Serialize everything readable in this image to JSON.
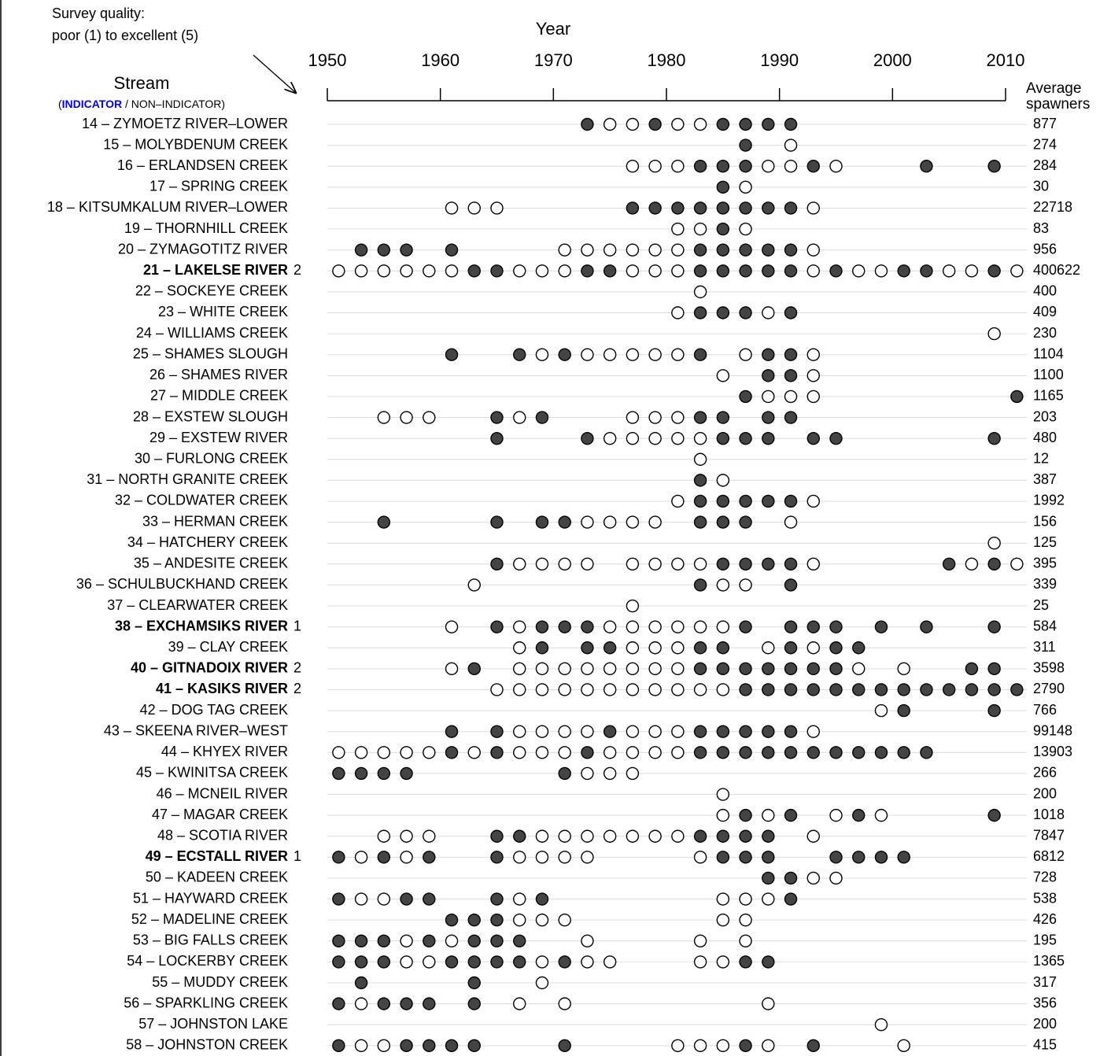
{
  "chart_data": {
    "type": "dot-timeline",
    "survey_note": [
      "Survey quality:",
      "poor (1) to excellent (5)"
    ],
    "x_label": "Year",
    "stream_header": "Stream",
    "stream_legend": [
      "(",
      "INDICATOR",
      " / NON–INDICATOR)"
    ],
    "spawners_header": [
      "Average",
      "spawners"
    ],
    "xlim": [
      1950,
      2010
    ],
    "xticks": [
      1950,
      1960,
      1970,
      1980,
      1990,
      2000,
      2010
    ],
    "filled_color": "#444444",
    "indicator_color": "#0000ee",
    "label_color": "#444444",
    "streams": [
      {
        "label": "14 – ZYMOETZ RIVER–LOWER",
        "spawners": 877,
        "filled": [
          1973,
          1979,
          1985,
          1987,
          1989,
          1991
        ],
        "open": [
          1975,
          1977,
          1981,
          1983
        ]
      },
      {
        "label": "15 – MOLYBDENUM CREEK",
        "spawners": 274,
        "filled": [
          1987
        ],
        "open": [
          1991
        ]
      },
      {
        "label": "16 – ERLANDSEN CREEK",
        "spawners": 284,
        "filled": [
          1983,
          1985,
          1987,
          1993,
          2003,
          2009
        ],
        "open": [
          1977,
          1979,
          1981,
          1989,
          1991,
          1995
        ]
      },
      {
        "label": "17 – SPRING CREEK",
        "spawners": 30,
        "filled": [
          1985
        ],
        "open": [
          1987
        ]
      },
      {
        "label": "18 – KITSUMKALUM RIVER–LOWER",
        "spawners": 22718,
        "filled": [
          1977,
          1979,
          1981,
          1983,
          1985,
          1987,
          1989,
          1991
        ],
        "open": [
          1961,
          1963,
          1965,
          1993
        ]
      },
      {
        "label": "19 – THORNHILL CREEK",
        "spawners": 83,
        "filled": [
          1985
        ],
        "open": [
          1981,
          1983,
          1987
        ]
      },
      {
        "label": "20 – ZYMAGOTITZ RIVER",
        "spawners": 956,
        "filled": [
          1953,
          1955,
          1957,
          1961,
          1983,
          1985,
          1987,
          1989,
          1991
        ],
        "open": [
          1971,
          1973,
          1975,
          1977,
          1979,
          1981,
          1993
        ]
      },
      {
        "label": "21 – LAKELSE RIVER",
        "indicator": true,
        "quality": 2,
        "spawners": 400622,
        "filled": [
          1963,
          1965,
          1973,
          1975,
          1983,
          1985,
          1987,
          1989,
          1991,
          1995,
          2001,
          2003,
          2009
        ],
        "open": [
          1951,
          1953,
          1955,
          1957,
          1959,
          1961,
          1967,
          1969,
          1971,
          1977,
          1979,
          1981,
          1993,
          1997,
          1999,
          2005,
          2007,
          2011
        ]
      },
      {
        "label": "22 – SOCKEYE CREEK",
        "spawners": 400,
        "filled": [],
        "open": [
          1983
        ]
      },
      {
        "label": "23 – WHITE CREEK",
        "spawners": 409,
        "filled": [
          1983,
          1985,
          1987,
          1991
        ],
        "open": [
          1981,
          1989
        ]
      },
      {
        "label": "24 – WILLIAMS CREEK",
        "spawners": 230,
        "filled": [],
        "open": [
          2009
        ]
      },
      {
        "label": "25 – SHAMES SLOUGH",
        "spawners": 1104,
        "filled": [
          1961,
          1967,
          1971,
          1983,
          1989,
          1991
        ],
        "open": [
          1969,
          1973,
          1975,
          1977,
          1979,
          1981,
          1987,
          1993
        ]
      },
      {
        "label": "26 – SHAMES RIVER",
        "spawners": 1100,
        "filled": [
          1989,
          1991
        ],
        "open": [
          1985,
          1993
        ]
      },
      {
        "label": "27 – MIDDLE CREEK",
        "spawners": 1165,
        "filled": [
          1987,
          2011
        ],
        "open": [
          1989,
          1991,
          1993
        ]
      },
      {
        "label": "28 – EXSTEW SLOUGH",
        "spawners": 203,
        "filled": [
          1965,
          1969,
          1983,
          1985,
          1989,
          1991
        ],
        "open": [
          1955,
          1957,
          1959,
          1967,
          1977,
          1979,
          1981
        ]
      },
      {
        "label": "29 – EXSTEW RIVER",
        "spawners": 480,
        "filled": [
          1965,
          1973,
          1985,
          1987,
          1989,
          1993,
          1995,
          2009
        ],
        "open": [
          1975,
          1977,
          1979,
          1981,
          1983
        ]
      },
      {
        "label": "30 – FURLONG CREEK",
        "spawners": 12,
        "filled": [],
        "open": [
          1983
        ]
      },
      {
        "label": "31 – NORTH GRANITE CREEK",
        "spawners": 387,
        "filled": [
          1983
        ],
        "open": [
          1985
        ]
      },
      {
        "label": "32 – COLDWATER CREEK",
        "spawners": 1992,
        "filled": [
          1983,
          1985,
          1987,
          1989,
          1991
        ],
        "open": [
          1981,
          1993
        ]
      },
      {
        "label": "33 – HERMAN CREEK",
        "spawners": 156,
        "filled": [
          1955,
          1965,
          1969,
          1971,
          1983,
          1985,
          1987
        ],
        "open": [
          1973,
          1975,
          1977,
          1979,
          1991
        ]
      },
      {
        "label": "34 – HATCHERY CREEK",
        "spawners": 125,
        "filled": [],
        "open": [
          2009
        ]
      },
      {
        "label": "35 – ANDESITE CREEK",
        "spawners": 395,
        "filled": [
          1965,
          1985,
          1987,
          1989,
          1991,
          2005,
          2009
        ],
        "open": [
          1967,
          1969,
          1971,
          1973,
          1977,
          1979,
          1981,
          1983,
          1993,
          2007,
          2011
        ]
      },
      {
        "label": "36 – SCHULBUCKHAND CREEK",
        "spawners": 339,
        "filled": [
          1983,
          1991
        ],
        "open": [
          1963,
          1985,
          1987
        ]
      },
      {
        "label": "37 – CLEARWATER CREEK",
        "spawners": 25,
        "filled": [],
        "open": [
          1977
        ]
      },
      {
        "label": "38 – EXCHAMSIKS RIVER",
        "indicator": true,
        "quality": 1,
        "spawners": 584,
        "filled": [
          1965,
          1969,
          1971,
          1973,
          1987,
          1991,
          1993,
          1995,
          1999,
          2003,
          2009
        ],
        "open": [
          1961,
          1967,
          1975,
          1977,
          1979,
          1981,
          1983,
          1985
        ]
      },
      {
        "label": "39 – CLAY CREEK",
        "spawners": 311,
        "filled": [
          1969,
          1973,
          1975,
          1983,
          1985,
          1991,
          1995,
          1997
        ],
        "open": [
          1967,
          1977,
          1979,
          1981,
          1989,
          1993
        ]
      },
      {
        "label": "40 – GITNADOIX RIVER",
        "indicator": true,
        "quality": 2,
        "spawners": 3598,
        "filled": [
          1963,
          1983,
          1985,
          1987,
          1989,
          1991,
          1993,
          1995,
          2007,
          2009
        ],
        "open": [
          1961,
          1967,
          1969,
          1971,
          1973,
          1975,
          1977,
          1979,
          1981,
          1997,
          2001
        ]
      },
      {
        "label": "41 – KASIKS RIVER",
        "indicator": true,
        "quality": 2,
        "spawners": 2790,
        "filled": [
          1987,
          1989,
          1991,
          1993,
          1995,
          1997,
          1999,
          2001,
          2003,
          2005,
          2007,
          2009,
          2011
        ],
        "open": [
          1965,
          1967,
          1969,
          1971,
          1973,
          1975,
          1977,
          1979,
          1981,
          1983,
          1985
        ]
      },
      {
        "label": "42 – DOG TAG CREEK",
        "spawners": 766,
        "filled": [
          2001,
          2009
        ],
        "open": [
          1999
        ]
      },
      {
        "label": "43 – SKEENA RIVER–WEST",
        "spawners": 99148,
        "filled": [
          1961,
          1965,
          1975,
          1983,
          1985,
          1987,
          1989,
          1991
        ],
        "open": [
          1967,
          1969,
          1971,
          1973,
          1977,
          1979,
          1981,
          1993
        ]
      },
      {
        "label": "44 – KHYEX RIVER",
        "spawners": 13903,
        "filled": [
          1961,
          1965,
          1973,
          1983,
          1985,
          1987,
          1989,
          1991,
          1993,
          1995,
          1997,
          1999,
          2001,
          2003
        ],
        "open": [
          1951,
          1953,
          1955,
          1957,
          1959,
          1963,
          1967,
          1969,
          1971,
          1975,
          1977,
          1979,
          1981
        ]
      },
      {
        "label": "45 – KWINITSA CREEK",
        "spawners": 266,
        "filled": [
          1951,
          1953,
          1955,
          1957,
          1971
        ],
        "open": [
          1973,
          1975,
          1977
        ]
      },
      {
        "label": "46 – MCNEIL RIVER",
        "spawners": 200,
        "filled": [],
        "open": [
          1985
        ]
      },
      {
        "label": "47 – MAGAR CREEK",
        "spawners": 1018,
        "filled": [
          1987,
          1991,
          1997,
          2009
        ],
        "open": [
          1985,
          1989,
          1995,
          1999
        ]
      },
      {
        "label": "48 – SCOTIA RIVER",
        "spawners": 7847,
        "filled": [
          1965,
          1967,
          1983,
          1985,
          1987,
          1989
        ],
        "open": [
          1955,
          1957,
          1959,
          1969,
          1971,
          1973,
          1975,
          1977,
          1979,
          1981,
          1993
        ]
      },
      {
        "label": "49 – ECSTALL RIVER",
        "indicator": true,
        "quality": 1,
        "spawners": 6812,
        "filled": [
          1951,
          1955,
          1959,
          1965,
          1985,
          1987,
          1989,
          1995,
          1997,
          1999,
          2001
        ],
        "open": [
          1953,
          1957,
          1967,
          1969,
          1971,
          1973,
          1983
        ]
      },
      {
        "label": "50 – KADEEN CREEK",
        "spawners": 728,
        "filled": [
          1989,
          1991
        ],
        "open": [
          1993,
          1995
        ]
      },
      {
        "label": "51 – HAYWARD CREEK",
        "spawners": 538,
        "filled": [
          1951,
          1957,
          1959,
          1965,
          1969,
          1991
        ],
        "open": [
          1953,
          1955,
          1967,
          1985,
          1987,
          1989
        ]
      },
      {
        "label": "52 – MADELINE CREEK",
        "spawners": 426,
        "filled": [
          1961,
          1963,
          1965
        ],
        "open": [
          1967,
          1969,
          1971,
          1985,
          1987
        ]
      },
      {
        "label": "53 – BIG FALLS CREEK",
        "spawners": 195,
        "filled": [
          1951,
          1953,
          1955,
          1959,
          1963,
          1965,
          1967
        ],
        "open": [
          1957,
          1961,
          1973,
          1983,
          1987
        ]
      },
      {
        "label": "54 – LOCKERBY CREEK",
        "spawners": 1365,
        "filled": [
          1951,
          1953,
          1955,
          1961,
          1963,
          1965,
          1967,
          1971,
          1987,
          1989
        ],
        "open": [
          1957,
          1959,
          1969,
          1973,
          1975,
          1983,
          1985
        ]
      },
      {
        "label": "55 – MUDDY CREEK",
        "spawners": 317,
        "filled": [
          1953,
          1963
        ],
        "open": [
          1969
        ]
      },
      {
        "label": "56 – SPARKLING CREEK",
        "spawners": 356,
        "filled": [
          1951,
          1955,
          1957,
          1959,
          1963
        ],
        "open": [
          1953,
          1967,
          1971,
          1989
        ]
      },
      {
        "label": "57 – JOHNSTON LAKE",
        "spawners": 200,
        "filled": [],
        "open": [
          1999
        ]
      },
      {
        "label": "58 – JOHNSTON CREEK",
        "spawners": 415,
        "filled": [
          1951,
          1957,
          1959,
          1961,
          1963,
          1971,
          1987,
          1993
        ],
        "open": [
          1953,
          1955,
          1981,
          1983,
          1985,
          1989,
          2001
        ]
      }
    ]
  }
}
